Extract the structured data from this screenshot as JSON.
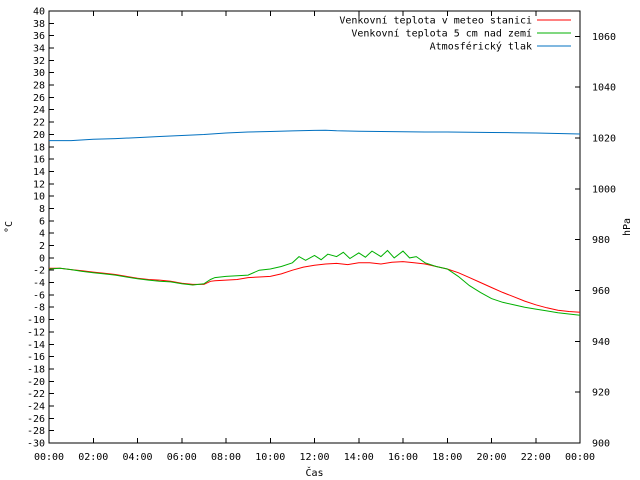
{
  "chart_data": {
    "type": "line",
    "x_categories": [
      "00:00",
      "02:00",
      "04:00",
      "06:00",
      "08:00",
      "10:00",
      "12:00",
      "14:00",
      "16:00",
      "18:00",
      "20:00",
      "22:00",
      "00:00"
    ],
    "x_range": [
      0,
      24
    ],
    "x_label": "Čas",
    "y_left": {
      "label": "°C",
      "range": [
        -30,
        40
      ],
      "step": 2
    },
    "y_right": {
      "label": "hPa",
      "range": [
        900,
        1070
      ],
      "ticks": [
        900,
        920,
        940,
        960,
        980,
        1000,
        1020,
        1040,
        1060
      ]
    },
    "grid": false,
    "legend_position": "top-right",
    "series": [
      {
        "name": "Venkovní teplota v meteo stanici",
        "color": "#ff0000",
        "axis": "left",
        "points": [
          [
            0,
            -1.7
          ],
          [
            0.5,
            -1.7
          ],
          [
            1,
            -1.9
          ],
          [
            1.5,
            -2.1
          ],
          [
            2,
            -2.3
          ],
          [
            2.5,
            -2.5
          ],
          [
            3,
            -2.7
          ],
          [
            3.5,
            -3.0
          ],
          [
            4,
            -3.3
          ],
          [
            4.5,
            -3.5
          ],
          [
            5,
            -3.6
          ],
          [
            5.5,
            -3.8
          ],
          [
            6,
            -4.1
          ],
          [
            6.5,
            -4.3
          ],
          [
            7,
            -4.3
          ],
          [
            7.3,
            -3.8
          ],
          [
            7.5,
            -3.7
          ],
          [
            8,
            -3.6
          ],
          [
            8.5,
            -3.5
          ],
          [
            9,
            -3.2
          ],
          [
            9.5,
            -3.1
          ],
          [
            10,
            -3.0
          ],
          [
            10.5,
            -2.6
          ],
          [
            11,
            -2.0
          ],
          [
            11.5,
            -1.5
          ],
          [
            12,
            -1.2
          ],
          [
            12.5,
            -1.0
          ],
          [
            13,
            -0.9
          ],
          [
            13.5,
            -1.1
          ],
          [
            14,
            -0.8
          ],
          [
            14.5,
            -0.8
          ],
          [
            15,
            -1.0
          ],
          [
            15.5,
            -0.7
          ],
          [
            16,
            -0.6
          ],
          [
            16.5,
            -0.8
          ],
          [
            17,
            -1.0
          ],
          [
            17.5,
            -1.4
          ],
          [
            18,
            -1.8
          ],
          [
            18.5,
            -2.4
          ],
          [
            19,
            -3.2
          ],
          [
            19.5,
            -4.0
          ],
          [
            20,
            -4.8
          ],
          [
            20.5,
            -5.6
          ],
          [
            21,
            -6.3
          ],
          [
            21.5,
            -7.0
          ],
          [
            22,
            -7.6
          ],
          [
            22.5,
            -8.1
          ],
          [
            23,
            -8.5
          ],
          [
            23.5,
            -8.7
          ],
          [
            24,
            -8.8
          ]
        ]
      },
      {
        "name": "Venkovní teplota 5 cm nad zemí",
        "color": "#00b000",
        "axis": "left",
        "points": [
          [
            0,
            -1.8
          ],
          [
            0.5,
            -1.7
          ],
          [
            1,
            -1.9
          ],
          [
            1.5,
            -2.2
          ],
          [
            2,
            -2.4
          ],
          [
            2.5,
            -2.6
          ],
          [
            3,
            -2.8
          ],
          [
            3.5,
            -3.1
          ],
          [
            4,
            -3.4
          ],
          [
            4.5,
            -3.6
          ],
          [
            5,
            -3.8
          ],
          [
            5.5,
            -3.9
          ],
          [
            6,
            -4.2
          ],
          [
            6.5,
            -4.4
          ],
          [
            7,
            -4.2
          ],
          [
            7.3,
            -3.5
          ],
          [
            7.5,
            -3.2
          ],
          [
            8,
            -3.0
          ],
          [
            8.5,
            -2.9
          ],
          [
            9,
            -2.8
          ],
          [
            9.5,
            -2.0
          ],
          [
            10,
            -1.8
          ],
          [
            10.5,
            -1.4
          ],
          [
            11,
            -0.8
          ],
          [
            11.3,
            0.2
          ],
          [
            11.6,
            -0.4
          ],
          [
            12,
            0.4
          ],
          [
            12.3,
            -0.3
          ],
          [
            12.6,
            0.6
          ],
          [
            13,
            0.2
          ],
          [
            13.3,
            0.9
          ],
          [
            13.6,
            -0.1
          ],
          [
            14,
            0.8
          ],
          [
            14.3,
            0.1
          ],
          [
            14.6,
            1.1
          ],
          [
            15,
            0.2
          ],
          [
            15.3,
            1.2
          ],
          [
            15.6,
            0.0
          ],
          [
            16,
            1.1
          ],
          [
            16.3,
            0.0
          ],
          [
            16.6,
            0.2
          ],
          [
            17,
            -0.8
          ],
          [
            17.5,
            -1.4
          ],
          [
            18,
            -1.8
          ],
          [
            18.5,
            -3.0
          ],
          [
            19,
            -4.5
          ],
          [
            19.5,
            -5.6
          ],
          [
            20,
            -6.6
          ],
          [
            20.5,
            -7.2
          ],
          [
            21,
            -7.6
          ],
          [
            21.5,
            -8.0
          ],
          [
            22,
            -8.3
          ],
          [
            22.5,
            -8.6
          ],
          [
            23,
            -8.9
          ],
          [
            23.5,
            -9.1
          ],
          [
            24,
            -9.3
          ]
        ]
      },
      {
        "name": "Atmosférický tlak",
        "color": "#0070c0",
        "axis": "right",
        "points": [
          [
            0,
            1019
          ],
          [
            1,
            1019
          ],
          [
            2,
            1019.5
          ],
          [
            3,
            1019.8
          ],
          [
            4,
            1020.2
          ],
          [
            5,
            1020.6
          ],
          [
            6,
            1021
          ],
          [
            7,
            1021.4
          ],
          [
            8,
            1022
          ],
          [
            9,
            1022.4
          ],
          [
            10,
            1022.6
          ],
          [
            11,
            1022.8
          ],
          [
            12,
            1023
          ],
          [
            12.5,
            1023.1
          ],
          [
            13,
            1022.9
          ],
          [
            14,
            1022.7
          ],
          [
            15,
            1022.6
          ],
          [
            16,
            1022.5
          ],
          [
            17,
            1022.4
          ],
          [
            18,
            1022.4
          ],
          [
            19,
            1022.3
          ],
          [
            20,
            1022.2
          ],
          [
            21,
            1022.1
          ],
          [
            22,
            1022
          ],
          [
            23,
            1021.8
          ],
          [
            24,
            1021.6
          ]
        ]
      }
    ]
  }
}
